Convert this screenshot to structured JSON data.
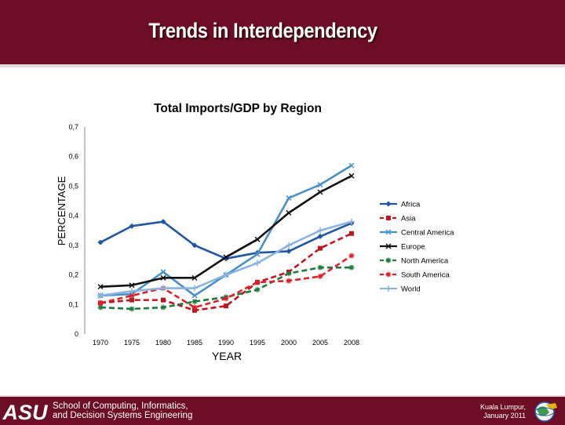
{
  "slide": {
    "title": "Trends in Interdependency"
  },
  "footer": {
    "logo_text": "ASU",
    "school_line1": "School of Computing, Informatics,",
    "school_line2": "and Decision Systems Engineering",
    "location_line1": "Kuala Lumpur,",
    "location_line2": "January 2011"
  },
  "chart_data": {
    "type": "line",
    "title": "Total Imports/GDP by Region",
    "xlabel": "YEAR",
    "ylabel": "PERCENTAGE",
    "categories": [
      "1970",
      "1975",
      "1980",
      "1985",
      "1990",
      "1995",
      "2000",
      "2005",
      "2008"
    ],
    "y_ticks": [
      "0",
      "0,1",
      "0,2",
      "0,3",
      "0,4",
      "0,5",
      "0,6",
      "0,7"
    ],
    "ylim": [
      0,
      0.7
    ],
    "grid": false,
    "legend_position": "right",
    "series": [
      {
        "name": "Africa",
        "color": "#2255a4",
        "marker": "diamond",
        "dash": "solid",
        "values": [
          0.31,
          0.365,
          0.38,
          0.3,
          0.255,
          0.275,
          0.28,
          0.33,
          0.375
        ]
      },
      {
        "name": "Asia",
        "color": "#c0141e",
        "marker": "square",
        "dash": "dashed",
        "values": [
          0.105,
          0.115,
          0.115,
          0.08,
          0.095,
          0.175,
          0.21,
          0.29,
          0.34
        ]
      },
      {
        "name": "Central America",
        "color": "#4a90c8",
        "marker": "x",
        "dash": "solid",
        "values": [
          0.13,
          0.135,
          0.21,
          0.13,
          0.2,
          0.27,
          0.46,
          0.505,
          0.57
        ]
      },
      {
        "name": "Europe",
        "color": "#111111",
        "marker": "x",
        "dash": "solid",
        "values": [
          0.16,
          0.165,
          0.19,
          0.19,
          0.26,
          0.32,
          0.41,
          0.48,
          0.535
        ]
      },
      {
        "name": "North America",
        "color": "#1e7a3c",
        "marker": "star",
        "dash": "dashed",
        "values": [
          0.09,
          0.085,
          0.09,
          0.11,
          0.125,
          0.15,
          0.205,
          0.225,
          0.225
        ]
      },
      {
        "name": "South America",
        "color": "#e02028",
        "marker": "star",
        "dash": "dashed",
        "values": [
          0.105,
          0.13,
          0.155,
          0.09,
          0.12,
          0.175,
          0.18,
          0.195,
          0.265
        ]
      },
      {
        "name": "World",
        "color": "#8ab4e0",
        "marker": "plus",
        "dash": "solid",
        "values": [
          0.13,
          0.145,
          0.155,
          0.155,
          0.2,
          0.24,
          0.3,
          0.35,
          0.38
        ]
      }
    ]
  }
}
